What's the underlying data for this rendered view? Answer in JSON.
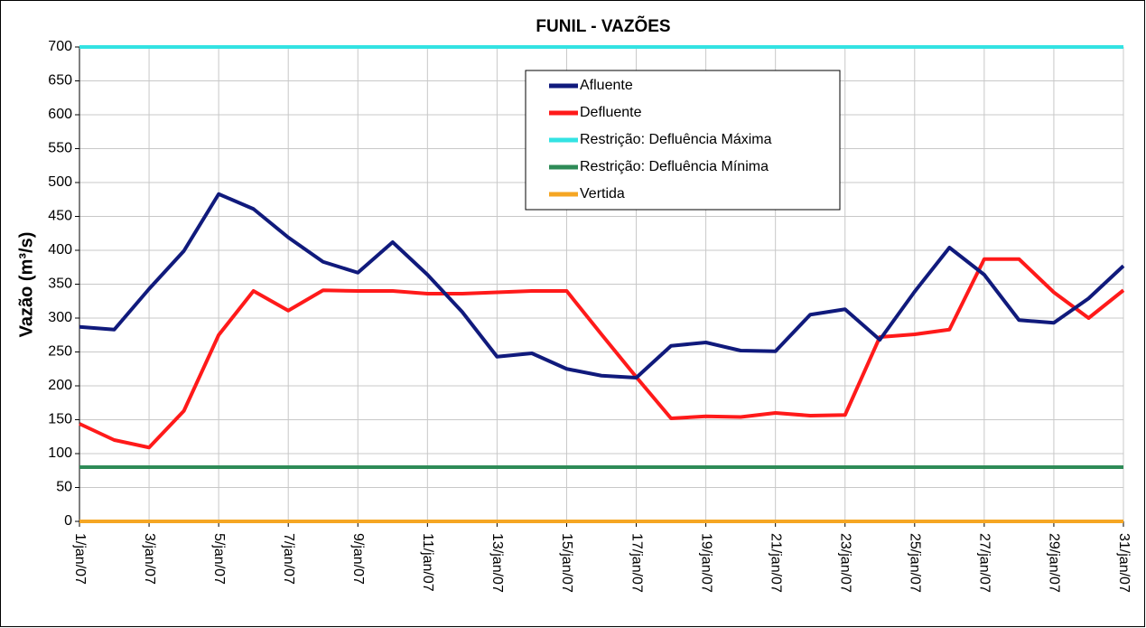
{
  "chart_data": {
    "type": "line",
    "title": "FUNIL - VAZÕES",
    "y_label": "Vazão (m³/s)",
    "categories": [
      "1/jan/07",
      null,
      "3/jan/07",
      null,
      "5/jan/07",
      null,
      "7/jan/07",
      null,
      "9/jan/07",
      null,
      "11/jan/07",
      null,
      "13/jan/07",
      null,
      "15/jan/07",
      null,
      "17/jan/07",
      null,
      "19/jan/07",
      null,
      "21/jan/07",
      null,
      "23/jan/07",
      null,
      "25/jan/07",
      null,
      "27/jan/07",
      null,
      "29/jan/07",
      null,
      "31/jan/07"
    ],
    "series": [
      {
        "name": "Afluente",
        "color": "#101a7c",
        "values": [
          287,
          283,
          343,
          399,
          483,
          461,
          419,
          383,
          367,
          412,
          364,
          309,
          243,
          248,
          225,
          215,
          212,
          259,
          264,
          252,
          251,
          305,
          313,
          268,
          339,
          404,
          364,
          297,
          293,
          329,
          377
        ]
      },
      {
        "name": "Defluente",
        "color": "#ff1a1a",
        "values": [
          144,
          120,
          109,
          163,
          275,
          340,
          311,
          341,
          340,
          340,
          336,
          336,
          338,
          340,
          340,
          276,
          213,
          152,
          155,
          154,
          160,
          156,
          157,
          272,
          276,
          283,
          387,
          387,
          338,
          300,
          341
        ]
      },
      {
        "name": "Restrição: Defluência Máxima",
        "color": "#33e3e3",
        "values": [
          700,
          700,
          700,
          700,
          700,
          700,
          700,
          700,
          700,
          700,
          700,
          700,
          700,
          700,
          700,
          700,
          700,
          700,
          700,
          700,
          700,
          700,
          700,
          700,
          700,
          700,
          700,
          700,
          700,
          700,
          700
        ]
      },
      {
        "name": "Restrição: Defluência Mínima",
        "color": "#2e8b57",
        "values": [
          80,
          80,
          80,
          80,
          80,
          80,
          80,
          80,
          80,
          80,
          80,
          80,
          80,
          80,
          80,
          80,
          80,
          80,
          80,
          80,
          80,
          80,
          80,
          80,
          80,
          80,
          80,
          80,
          80,
          80,
          80
        ]
      },
      {
        "name": "Vertida",
        "color": "#f5a623",
        "values": [
          0,
          0,
          0,
          0,
          0,
          0,
          0,
          0,
          0,
          0,
          0,
          0,
          0,
          0,
          0,
          0,
          0,
          0,
          0,
          0,
          0,
          0,
          0,
          0,
          0,
          0,
          0,
          0,
          0,
          0,
          0
        ]
      }
    ],
    "ylim": [
      0,
      700
    ],
    "yticks": [
      0,
      50,
      100,
      150,
      200,
      250,
      300,
      350,
      400,
      450,
      500,
      550,
      600,
      650,
      700
    ],
    "grid": true
  }
}
